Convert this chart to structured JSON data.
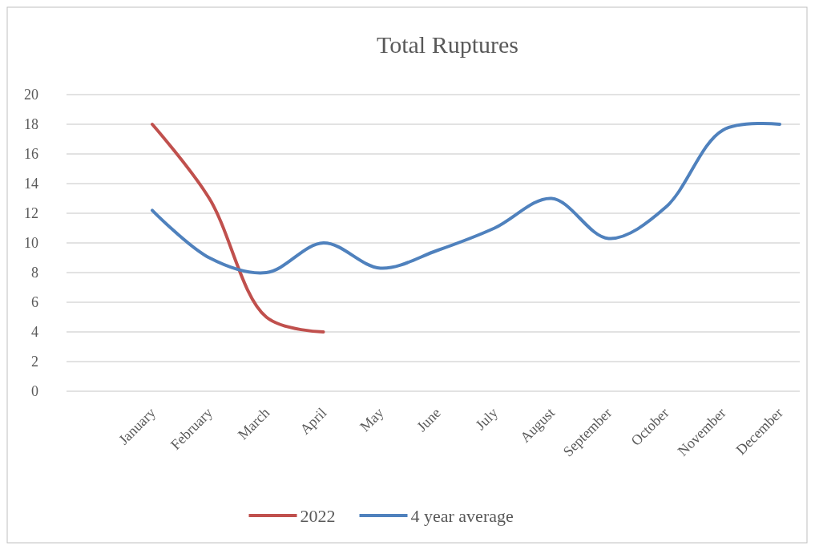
{
  "chart_data": {
    "type": "line",
    "title": "Total Ruptures",
    "categories": [
      "January",
      "February",
      "March",
      "April",
      "May",
      "June",
      "July",
      "August",
      "September",
      "October",
      "November",
      "December"
    ],
    "series": [
      {
        "name": "2022",
        "color": "#c0504d",
        "values": [
          18,
          13,
          5,
          4,
          null,
          null,
          null,
          null,
          null,
          null,
          null,
          null
        ]
      },
      {
        "name": "4 year average",
        "color": "#4f81bd",
        "values": [
          12.2,
          9,
          8,
          10,
          8.3,
          9.5,
          11,
          13,
          10.3,
          12.4,
          17.6,
          18
        ]
      }
    ],
    "ylim": [
      0,
      20
    ],
    "yticks": [
      0,
      2,
      4,
      6,
      8,
      10,
      12,
      14,
      16,
      18,
      20
    ],
    "grid": "y",
    "legend": "bottom",
    "marker": "none",
    "line_style": "solid"
  }
}
